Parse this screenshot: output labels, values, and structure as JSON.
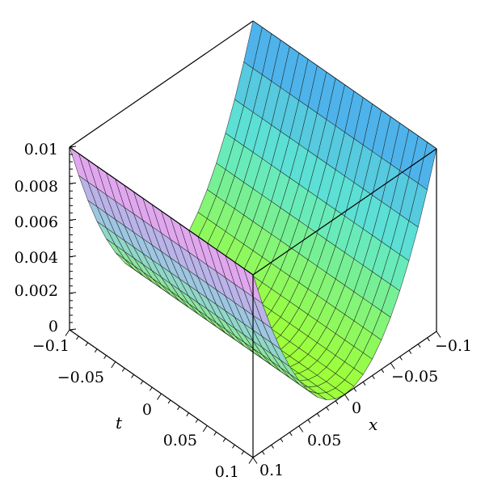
{
  "chart_data": {
    "type": "surface3d",
    "title": "",
    "function": "u(x,t) = x^2",
    "axes": {
      "x": {
        "label": "x",
        "range": [
          -0.1,
          0.1
        ],
        "tick_labels": [
          "-0.1",
          "-0.05",
          "0",
          "0.05",
          "0.1"
        ]
      },
      "t": {
        "label": "t",
        "range": [
          -0.1,
          0.1
        ],
        "tick_labels": [
          "-0.1",
          "-0.05",
          "0",
          "0.05",
          "0.1"
        ]
      },
      "z": {
        "label": "",
        "range": [
          0,
          0.01
        ],
        "tick_labels": [
          "0",
          "0.002",
          "0.004",
          "0.006",
          "0.008",
          "0.01"
        ]
      }
    },
    "x_tick_values": [
      -0.1,
      -0.05,
      0,
      0.05,
      0.1
    ],
    "t_tick_values": [
      -0.1,
      -0.05,
      0,
      0.05,
      0.1
    ],
    "z_tick_values": [
      0,
      0.002,
      0.004,
      0.006,
      0.008,
      0.01
    ],
    "grid_lines": 20,
    "box": true,
    "colors": {
      "low": "#9dff3a",
      "mid": "#5fe7d0",
      "high": "#4aa6f0",
      "left_edge": "#f0a6ee"
    }
  }
}
